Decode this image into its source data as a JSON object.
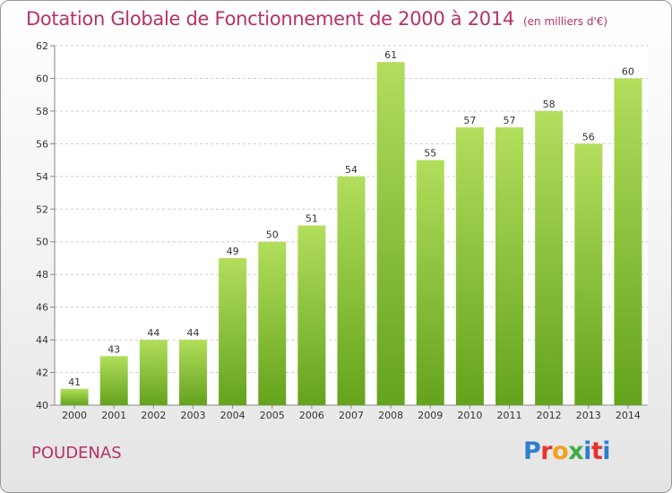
{
  "header": {
    "title": "Dotation Globale de Fonctionnement de 2000 à 2014",
    "subtitle": "(en milliers d'€)"
  },
  "footer": {
    "commune": "POUDENAS",
    "brand_letters": [
      "P",
      "r",
      "o",
      "x",
      "i",
      "t",
      "i"
    ],
    "brand_colors": [
      "#2b7fd0",
      "#e8322b",
      "#f2a11f",
      "#3fae49",
      "#2b7fd0",
      "#e8322b",
      "#2b7fd0"
    ]
  },
  "colors": {
    "bar_top": "#b2de5c",
    "bar_bottom": "#64a31c",
    "grid": "#cccccc",
    "axis": "#888888"
  },
  "chart_data": {
    "type": "bar",
    "categories": [
      "2000",
      "2001",
      "2002",
      "2003",
      "2004",
      "2005",
      "2006",
      "2007",
      "2008",
      "2009",
      "2010",
      "2011",
      "2012",
      "2013",
      "2014"
    ],
    "values": [
      41,
      43,
      44,
      44,
      49,
      50,
      51,
      54,
      61,
      55,
      57,
      57,
      58,
      56,
      60
    ],
    "data_labels": [
      "41",
      "43",
      "44",
      "44",
      "49",
      "50",
      "51",
      "54",
      "61",
      "55",
      "57",
      "57",
      "58",
      "56",
      "60"
    ],
    "y_ticks": [
      40,
      42,
      44,
      46,
      48,
      50,
      52,
      54,
      56,
      58,
      60,
      62
    ],
    "ylim": [
      40,
      62
    ],
    "grid": true
  }
}
